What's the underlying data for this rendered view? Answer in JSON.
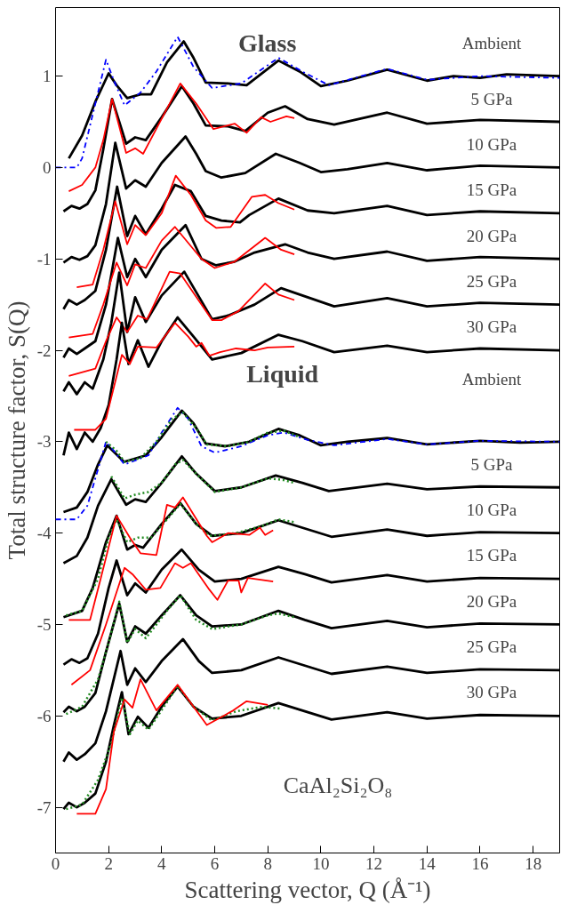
{
  "chart_data": {
    "type": "line",
    "xlabel": "Scattering vector, Q (Å⁻¹)",
    "ylabel": "Total structure factor, S(Q)",
    "xlim": [
      0,
      19
    ],
    "ylim": [
      -7.5,
      1.75
    ],
    "xticks": [
      0,
      2,
      4,
      6,
      8,
      10,
      12,
      14,
      16,
      18
    ],
    "yticks": [
      -7,
      -6,
      -5,
      -4,
      -3,
      -2,
      -1,
      0,
      1
    ],
    "grid": false,
    "marker": "none",
    "line_style": "solid",
    "series": [
      {
        "color": "#000000",
        "x": [
          0.5,
          1.0,
          1.5,
          2.0,
          2.3,
          2.7,
          3.2,
          3.6,
          4.2,
          4.83,
          5.2,
          5.66,
          6.5,
          7.2,
          8.4,
          9.2,
          10,
          11,
          12.5,
          14,
          15,
          16,
          17,
          19
        ],
        "values": [
          0.1,
          0.35,
          0.72,
          1.03,
          0.9,
          0.76,
          0.8,
          0.8,
          1.15,
          1.38,
          1.2,
          0.93,
          0.92,
          0.9,
          1.17,
          1.05,
          0.89,
          0.95,
          1.07,
          0.95,
          1.0,
          0.98,
          1.02,
          1.0
        ]
      },
      {
        "color": "#0000ff",
        "line_style": "dashed",
        "x": [
          0,
          0.8,
          1.0,
          1.5,
          1.9,
          2.2,
          2.6,
          3.2,
          3.8,
          4.6,
          5.2,
          5.9,
          7.0,
          8.4,
          9.3,
          10.3,
          12.5,
          14,
          16,
          19
        ],
        "values": [
          0.0,
          0.0,
          0.1,
          0.7,
          1.18,
          0.95,
          0.68,
          0.82,
          1.05,
          1.43,
          1.1,
          0.87,
          0.92,
          1.2,
          1.05,
          0.9,
          1.08,
          0.96,
          1.0,
          0.98
        ]
      },
      {
        "color": "#000000",
        "x": [
          0.3,
          0.6,
          0.9,
          1.2,
          1.5,
          1.8,
          2.13,
          2.4,
          2.66,
          3.0,
          3.4,
          4.0,
          4.76,
          5.2,
          5.66,
          6.5,
          7.15,
          8.0,
          8.65,
          9.5,
          10.5,
          12.5,
          14,
          16,
          19
        ],
        "values": [
          -0.48,
          -0.42,
          -0.45,
          -0.4,
          -0.25,
          0.2,
          0.75,
          0.5,
          0.26,
          0.33,
          0.3,
          0.55,
          0.89,
          0.7,
          0.46,
          0.45,
          0.4,
          0.6,
          0.67,
          0.53,
          0.47,
          0.6,
          0.48,
          0.52,
          0.5
        ]
      },
      {
        "color": "#ff0000",
        "x": [
          0.5,
          1.0,
          1.5,
          1.8,
          2.13,
          2.4,
          2.66,
          3.0,
          3.3,
          3.9,
          4.7,
          5.3,
          5.95,
          6.75,
          7.2,
          7.75,
          8.1,
          8.7,
          9.0
        ],
        "values": [
          -0.26,
          -0.19,
          0.0,
          0.3,
          0.75,
          0.45,
          0.16,
          0.21,
          0.15,
          0.48,
          0.92,
          0.7,
          0.42,
          0.48,
          0.38,
          0.55,
          0.5,
          0.56,
          0.54
        ]
      },
      {
        "color": "#000000",
        "x": [
          0.3,
          0.6,
          0.9,
          1.2,
          1.5,
          1.9,
          2.25,
          2.66,
          3.0,
          3.4,
          4.0,
          4.9,
          5.3,
          5.66,
          6.25,
          7.15,
          8.3,
          9.2,
          10,
          11,
          12.5,
          14,
          16,
          19
        ],
        "values": [
          -1.04,
          -0.98,
          -1.01,
          -0.97,
          -0.85,
          -0.4,
          0.27,
          -0.23,
          -0.14,
          -0.21,
          0.05,
          0.34,
          0.15,
          -0.04,
          -0.11,
          -0.06,
          0.15,
          0.05,
          -0.05,
          -0.02,
          0.05,
          -0.03,
          0.02,
          0.0
        ]
      },
      {
        "color": "#000000",
        "x": [
          0.3,
          0.5,
          0.8,
          1.1,
          1.5,
          1.9,
          2.32,
          2.7,
          3.0,
          3.4,
          4.0,
          4.5,
          5.1,
          5.66,
          6.25,
          6.95,
          7.3,
          8.4,
          9.5,
          10.5,
          12.5,
          14,
          16,
          19
        ],
        "values": [
          -1.55,
          -1.45,
          -1.5,
          -1.45,
          -1.35,
          -0.9,
          -0.21,
          -0.75,
          -0.53,
          -0.73,
          -0.45,
          -0.19,
          -0.26,
          -0.53,
          -0.58,
          -0.6,
          -0.52,
          -0.34,
          -0.47,
          -0.5,
          -0.42,
          -0.52,
          -0.48,
          -0.5
        ]
      },
      {
        "color": "#ff0000",
        "x": [
          0.8,
          1.4,
          1.8,
          2.25,
          2.7,
          3.0,
          3.4,
          4.0,
          4.53,
          5.1,
          5.66,
          6.05,
          6.6,
          7.4,
          7.9,
          8.4,
          9.0
        ],
        "values": [
          -1.31,
          -1.28,
          -0.9,
          -0.37,
          -0.84,
          -0.63,
          -0.74,
          -0.5,
          -0.09,
          -0.3,
          -0.58,
          -0.66,
          -0.65,
          -0.32,
          -0.3,
          -0.39,
          -0.46
        ]
      },
      {
        "color": "#000000",
        "x": [
          0.3,
          0.5,
          0.8,
          1.1,
          1.5,
          1.9,
          2.35,
          2.7,
          3.0,
          3.4,
          4.0,
          4.9,
          5.5,
          6.05,
          6.75,
          7.5,
          8.65,
          9.5,
          10.5,
          12.5,
          14,
          16,
          19
        ],
        "values": [
          -2.08,
          -1.98,
          -2.04,
          -1.98,
          -1.9,
          -1.5,
          -0.77,
          -1.2,
          -1.0,
          -1.2,
          -0.9,
          -0.63,
          -1.0,
          -1.07,
          -1.03,
          -0.93,
          -0.84,
          -0.93,
          -1.0,
          -0.92,
          -1.02,
          -0.98,
          -1.0
        ]
      },
      {
        "color": "#ff0000",
        "x": [
          0.5,
          1.4,
          1.8,
          2.3,
          2.7,
          3.0,
          3.4,
          4.0,
          4.5,
          5.5,
          6.0,
          6.75,
          7.9,
          8.5,
          9.0
        ],
        "values": [
          -1.86,
          -1.82,
          -1.5,
          -1.04,
          -1.29,
          -1.06,
          -1.1,
          -0.8,
          -0.65,
          -1.0,
          -1.1,
          -1.03,
          -0.77,
          -0.9,
          -0.95
        ]
      },
      {
        "color": "#000000",
        "x": [
          0.3,
          0.5,
          0.8,
          1.1,
          1.4,
          1.8,
          2.1,
          2.4,
          2.7,
          3.0,
          3.4,
          4.0,
          4.85,
          5.9,
          6.5,
          7.5,
          8.5,
          9.5,
          10.5,
          12.5,
          14,
          16,
          19
        ],
        "values": [
          -2.45,
          -2.35,
          -2.48,
          -2.35,
          -2.42,
          -2.1,
          -1.7,
          -1.15,
          -1.8,
          -1.42,
          -1.69,
          -1.4,
          -1.14,
          -1.66,
          -1.62,
          -1.5,
          -1.32,
          -1.42,
          -1.52,
          -1.43,
          -1.52,
          -1.48,
          -1.5
        ]
      },
      {
        "color": "#ff0000",
        "x": [
          0.5,
          1.5,
          1.9,
          2.3,
          2.7,
          3.1,
          3.45,
          4.3,
          4.7,
          5.9,
          6.25,
          6.9,
          7.9,
          8.4,
          9.0
        ],
        "values": [
          -2.28,
          -2.2,
          -1.9,
          -1.64,
          -1.8,
          -1.62,
          -1.66,
          -1.14,
          -1.16,
          -1.67,
          -1.67,
          -1.57,
          -1.27,
          -1.39,
          -1.45
        ]
      },
      {
        "color": "#000000",
        "x": [
          0.3,
          0.5,
          0.8,
          1.1,
          1.4,
          1.7,
          2.0,
          2.3,
          2.5,
          2.75,
          3.1,
          3.5,
          4.0,
          4.6,
          5.2,
          5.9,
          7.0,
          8.4,
          9.3,
          10.5,
          12.5,
          14,
          16,
          19
        ],
        "values": [
          -3.15,
          -2.9,
          -3.08,
          -2.9,
          -3.0,
          -2.85,
          -2.6,
          -2.1,
          -1.7,
          -2.15,
          -1.89,
          -2.18,
          -1.9,
          -1.64,
          -1.85,
          -2.1,
          -2.03,
          -1.83,
          -1.9,
          -2.02,
          -1.95,
          -2.02,
          -1.98,
          -2.0
        ]
      },
      {
        "color": "#ff0000",
        "x": [
          0.7,
          1.5,
          1.9,
          2.2,
          2.5,
          2.8,
          3.1,
          3.8,
          4.5,
          5.0,
          5.3,
          5.5,
          5.8,
          6.2,
          6.8,
          7.5,
          8.0,
          9.0
        ],
        "values": [
          -2.87,
          -2.87,
          -2.75,
          -2.4,
          -2.05,
          -2.15,
          -1.96,
          -1.97,
          -1.7,
          -1.85,
          -1.96,
          -1.92,
          -2.06,
          -2.02,
          -1.98,
          -2.0,
          -1.97,
          -1.96
        ]
      },
      {
        "color": "#000000",
        "x": [
          0.3,
          0.8,
          1.2,
          1.6,
          1.95,
          2.58,
          3.4,
          4.0,
          4.76,
          5.2,
          5.66,
          6.4,
          7.3,
          8.4,
          9.2,
          10,
          11,
          12.5,
          14,
          16,
          17.5,
          19
        ],
        "values": [
          -3.77,
          -3.72,
          -3.55,
          -3.25,
          -3.04,
          -3.22,
          -3.15,
          -2.95,
          -2.66,
          -2.8,
          -3.02,
          -3.05,
          -3.0,
          -2.86,
          -2.93,
          -3.04,
          -3.0,
          -2.96,
          -3.03,
          -2.99,
          -3.01,
          -3.0
        ]
      },
      {
        "color": "#0000ff",
        "line_style": "dashed",
        "x": [
          0,
          0.8,
          1.2,
          1.5,
          1.9,
          2.2,
          2.6,
          3.5,
          4.0,
          4.6,
          5.0,
          5.5,
          6.0,
          7.0,
          8.0,
          8.6,
          9.5,
          10.5,
          12.5,
          14,
          16,
          19
        ],
        "values": [
          -3.85,
          -3.85,
          -3.7,
          -3.4,
          -3.0,
          -3.1,
          -3.25,
          -3.15,
          -2.9,
          -2.63,
          -2.75,
          -3.05,
          -3.12,
          -3.05,
          -2.93,
          -2.9,
          -2.98,
          -3.04,
          -2.97,
          -3.03,
          -2.99,
          -3.0
        ]
      },
      {
        "color": "#228b22",
        "line_style": "dotted",
        "x": [
          1.9,
          2.3,
          2.6,
          3.2,
          3.8,
          4.4,
          4.8,
          5.3,
          5.7,
          6.5,
          7.3,
          8.0,
          8.6,
          9.2
        ],
        "values": [
          -3.0,
          -3.1,
          -3.22,
          -3.18,
          -3.0,
          -2.75,
          -2.68,
          -2.85,
          -3.03,
          -3.05,
          -3.0,
          -2.9,
          -2.88,
          -2.95
        ]
      },
      {
        "color": "#000000",
        "x": [
          0.3,
          0.8,
          1.2,
          1.6,
          2.1,
          2.66,
          3.0,
          3.4,
          4.0,
          4.76,
          5.3,
          6.0,
          7.0,
          8.3,
          9.3,
          10.3,
          12.5,
          14,
          16,
          19
        ],
        "values": [
          -4.33,
          -4.25,
          -4.05,
          -3.7,
          -3.41,
          -3.69,
          -3.63,
          -3.66,
          -3.45,
          -3.16,
          -3.35,
          -3.54,
          -3.5,
          -3.37,
          -3.45,
          -3.54,
          -3.46,
          -3.52,
          -3.49,
          -3.5
        ]
      },
      {
        "color": "#228b22",
        "line_style": "dotted",
        "x": [
          2.1,
          2.6,
          3.0,
          3.5,
          4.0,
          4.5,
          4.8,
          5.3,
          6.0,
          7.0,
          8.0,
          8.6,
          9.0
        ],
        "values": [
          -3.38,
          -3.62,
          -3.58,
          -3.55,
          -3.45,
          -3.25,
          -3.2,
          -3.35,
          -3.55,
          -3.5,
          -3.4,
          -3.42,
          -3.45
        ]
      },
      {
        "color": "#000000",
        "x": [
          0.3,
          0.7,
          1.0,
          1.4,
          1.9,
          2.3,
          2.7,
          3.0,
          3.3,
          4.0,
          4.7,
          5.3,
          5.9,
          7.0,
          8.4,
          9.4,
          10.4,
          12.5,
          14,
          16,
          19
        ],
        "values": [
          -4.92,
          -4.88,
          -4.85,
          -4.6,
          -4.1,
          -3.81,
          -4.18,
          -4.13,
          -4.16,
          -3.9,
          -3.67,
          -3.9,
          -4.03,
          -4.0,
          -3.86,
          -3.95,
          -4.04,
          -3.96,
          -4.03,
          -3.99,
          -4.0
        ]
      },
      {
        "color": "#228b22",
        "line_style": "dotted",
        "x": [
          0.4,
          1.0,
          1.6,
          2.0,
          2.3,
          2.7,
          3.1,
          3.6,
          4.2,
          4.7,
          5.3,
          5.8,
          6.8,
          7.8,
          8.4,
          9.0
        ],
        "values": [
          -4.9,
          -4.85,
          -4.5,
          -4.05,
          -3.85,
          -4.1,
          -4.05,
          -4.05,
          -3.85,
          -3.68,
          -3.9,
          -4.03,
          -4.0,
          -3.92,
          -3.85,
          -3.88
        ]
      },
      {
        "color": "#ff0000",
        "x": [
          0.5,
          1.3,
          1.7,
          2.3,
          2.8,
          3.2,
          3.8,
          4.2,
          4.5,
          4.8,
          5.7,
          5.9,
          6.5,
          7.3,
          7.7,
          7.9,
          8.2
        ],
        "values": [
          -4.95,
          -4.95,
          -4.5,
          -3.81,
          -4.05,
          -4.22,
          -4.24,
          -3.69,
          -3.72,
          -3.61,
          -4.03,
          -4.1,
          -4.0,
          -4.02,
          -3.94,
          -4.02,
          -3.97
        ]
      },
      {
        "color": "#000000",
        "x": [
          0.3,
          0.6,
          0.9,
          1.2,
          1.6,
          2.0,
          2.3,
          2.7,
          3.0,
          3.4,
          4.0,
          4.75,
          5.4,
          6.0,
          7.0,
          8.4,
          9.4,
          10.4,
          12.5,
          14,
          16,
          19
        ],
        "values": [
          -5.44,
          -5.38,
          -5.42,
          -5.37,
          -5.1,
          -4.6,
          -4.3,
          -4.68,
          -4.55,
          -4.65,
          -4.4,
          -4.18,
          -4.4,
          -4.53,
          -4.5,
          -4.37,
          -4.45,
          -4.54,
          -4.46,
          -4.53,
          -4.49,
          -4.5
        ]
      },
      {
        "color": "#ff0000",
        "x": [
          0.6,
          1.3,
          1.9,
          2.6,
          2.9,
          3.4,
          3.95,
          4.5,
          4.8,
          5.1,
          5.8,
          6.1,
          6.5,
          6.9,
          7.0,
          7.25,
          8.2
        ],
        "values": [
          -5.66,
          -5.5,
          -5.0,
          -4.38,
          -4.45,
          -4.62,
          -4.6,
          -4.33,
          -4.38,
          -4.33,
          -4.62,
          -4.73,
          -4.52,
          -4.52,
          -4.65,
          -4.49,
          -4.53
        ]
      },
      {
        "color": "#000000",
        "x": [
          0.3,
          0.5,
          0.8,
          1.1,
          1.5,
          1.9,
          2.4,
          2.7,
          3.0,
          3.4,
          4.0,
          4.7,
          5.3,
          5.9,
          7.0,
          8.4,
          9.4,
          10.4,
          12.5,
          14,
          16,
          19
        ],
        "values": [
          -5.96,
          -5.9,
          -5.95,
          -5.9,
          -5.75,
          -5.3,
          -4.77,
          -5.19,
          -5.02,
          -5.1,
          -4.9,
          -4.68,
          -4.9,
          -5.02,
          -5.0,
          -4.85,
          -4.95,
          -5.04,
          -4.96,
          -5.03,
          -4.99,
          -5.0
        ]
      },
      {
        "color": "#228b22",
        "line_style": "dotted",
        "x": [
          0.4,
          1.0,
          1.6,
          2.0,
          2.4,
          2.7,
          3.0,
          3.4,
          4.2,
          4.7,
          5.3,
          5.9,
          7.0,
          8.0,
          8.4,
          9.0
        ],
        "values": [
          -5.98,
          -5.9,
          -5.6,
          -5.2,
          -4.75,
          -5.2,
          -5.05,
          -5.15,
          -4.85,
          -4.68,
          -4.95,
          -5.05,
          -5.0,
          -4.9,
          -4.88,
          -4.92
        ]
      },
      {
        "color": "#000000",
        "x": [
          0.3,
          0.5,
          0.8,
          1.1,
          1.5,
          1.9,
          2.45,
          2.7,
          3.0,
          3.4,
          4.0,
          4.8,
          5.4,
          5.9,
          7.0,
          8.4,
          9.4,
          10.4,
          12.5,
          14,
          16,
          19
        ],
        "values": [
          -6.5,
          -6.4,
          -6.48,
          -6.42,
          -6.3,
          -5.95,
          -5.29,
          -5.66,
          -5.48,
          -5.63,
          -5.4,
          -5.16,
          -5.4,
          -5.53,
          -5.5,
          -5.36,
          -5.45,
          -5.54,
          -5.46,
          -5.53,
          -5.49,
          -5.5
        ]
      },
      {
        "color": "#000000",
        "x": [
          0.3,
          0.5,
          0.8,
          1.1,
          1.5,
          1.9,
          2.2,
          2.5,
          2.75,
          3.1,
          3.5,
          4.0,
          4.6,
          5.2,
          5.9,
          7.0,
          8.4,
          9.4,
          10.4,
          12.5,
          14,
          16,
          19
        ],
        "values": [
          -7.02,
          -6.95,
          -7.0,
          -6.95,
          -6.85,
          -6.5,
          -6.1,
          -5.74,
          -6.2,
          -6.01,
          -6.13,
          -5.9,
          -5.68,
          -5.9,
          -6.03,
          -6.0,
          -5.86,
          -5.95,
          -6.04,
          -5.96,
          -6.03,
          -5.99,
          -6.0
        ]
      },
      {
        "color": "#228b22",
        "line_style": "dotted",
        "x": [
          0.4,
          1.0,
          1.6,
          2.1,
          2.5,
          2.8,
          3.1,
          3.5,
          4.2,
          4.6,
          5.2,
          5.9,
          6.8,
          7.8,
          8.5
        ],
        "values": [
          -7.02,
          -6.97,
          -6.7,
          -6.3,
          -5.8,
          -6.2,
          -6.05,
          -6.15,
          -5.85,
          -5.67,
          -5.9,
          -6.05,
          -5.95,
          -5.9,
          -5.92
        ]
      },
      {
        "color": "#ff0000",
        "x": [
          0.8,
          1.5,
          1.9,
          2.2,
          2.6,
          2.9,
          3.2,
          3.8,
          4.6,
          5.7,
          6.7,
          7.2,
          8.0
        ],
        "values": [
          -7.07,
          -7.07,
          -6.8,
          -6.17,
          -5.82,
          -5.91,
          -5.6,
          -5.94,
          -5.66,
          -6.1,
          -5.94,
          -5.84,
          -5.88
        ]
      }
    ],
    "annotations": [
      "Glass",
      "Ambient",
      "5 GPa",
      "10 GPa",
      "15 GPa",
      "20 GPa",
      "25 GPa",
      "30 GPa",
      "Liquid",
      "Ambient",
      "5 GPa",
      "10 GPa",
      "15 GPa",
      "20 GPa",
      "25 GPa",
      "30 GPa",
      "CaAl₂Si₂O₈"
    ]
  }
}
